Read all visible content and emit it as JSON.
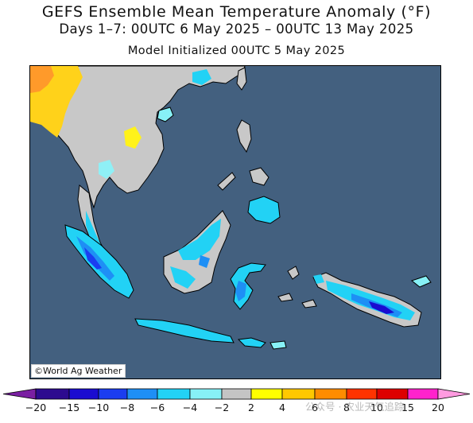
{
  "header": {
    "title": "GEFS Ensemble Mean Temperature Anomaly (°F)",
    "period": "Days 1–7: 00UTC 6 May 2025 – 00UTC 13 May 2025",
    "initialized": "Model Initialized 00UTC 5 May 2025"
  },
  "map": {
    "credit": "©World Ag Weather",
    "ocean_color": "#43607f",
    "region": "Southeast Asia / Maritime Continent"
  },
  "legend": {
    "tick_labels": [
      "-20",
      "-15",
      "-10",
      "-8",
      "-6",
      "-4",
      "-2",
      "2",
      "4",
      "6",
      "8",
      "10",
      "15",
      "20"
    ],
    "bins": [
      {
        "color": "#7a1fa2"
      },
      {
        "color": "#2d0b8f"
      },
      {
        "color": "#1a0cd0"
      },
      {
        "color": "#1b3df0"
      },
      {
        "color": "#1e8ff5"
      },
      {
        "color": "#22d2f5"
      },
      {
        "color": "#87f1f6"
      },
      {
        "color": "#c4c4c4"
      },
      {
        "color": "#ffff00"
      },
      {
        "color": "#ffc800"
      },
      {
        "color": "#ff8c00"
      },
      {
        "color": "#ff3300"
      },
      {
        "color": "#dd0000"
      },
      {
        "color": "#ff22cc"
      },
      {
        "color": "#ff9be0"
      }
    ]
  },
  "watermark": "公众号 · 农业天气追踪"
}
